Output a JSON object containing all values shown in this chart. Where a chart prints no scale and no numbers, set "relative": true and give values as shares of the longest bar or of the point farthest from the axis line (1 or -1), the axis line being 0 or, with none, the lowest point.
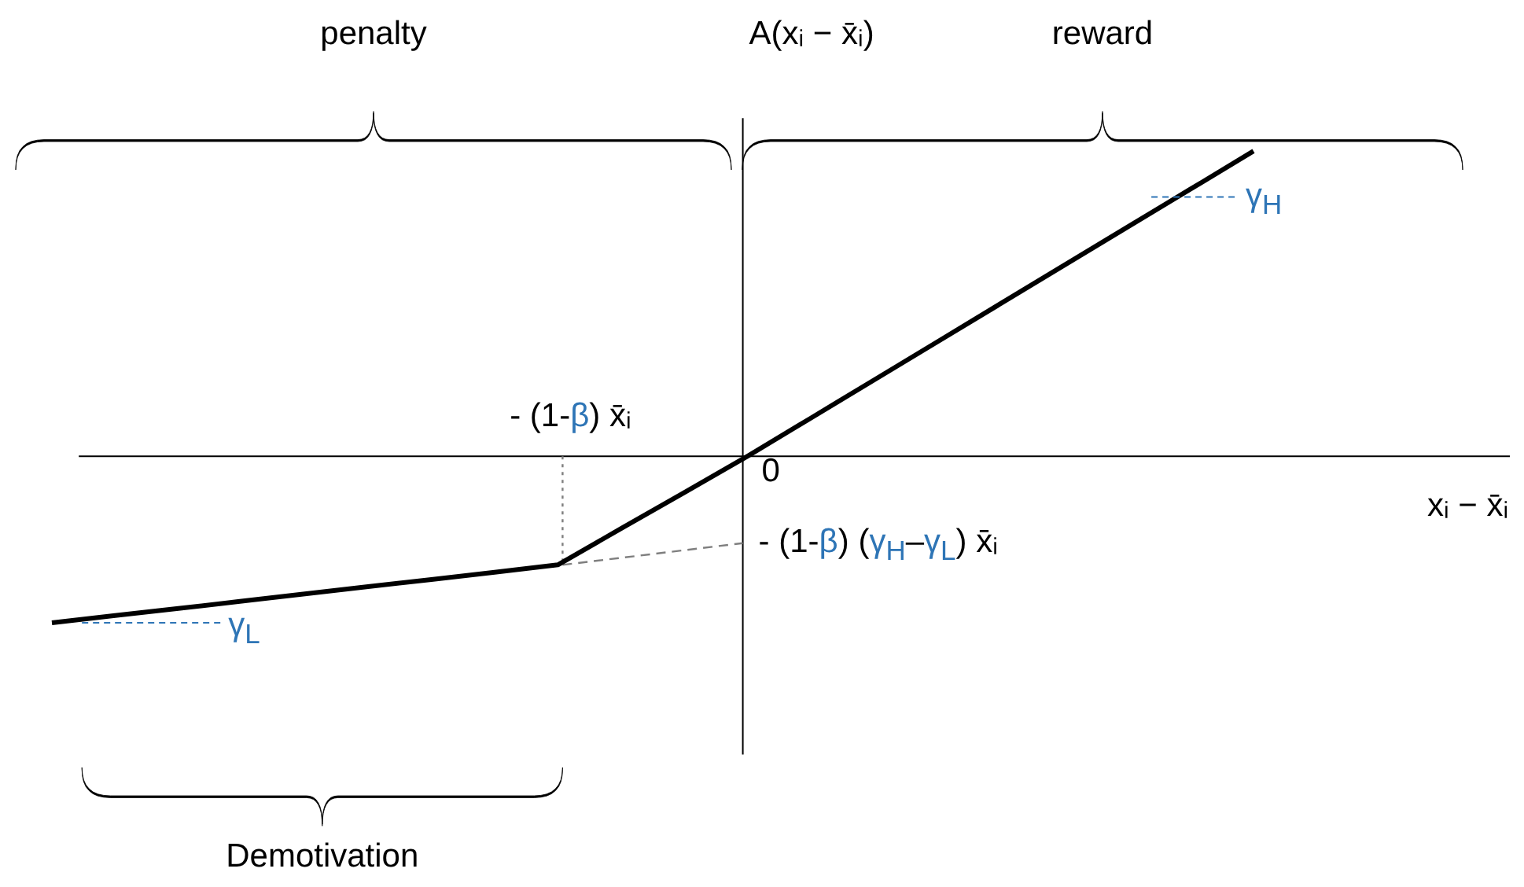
{
  "chart_data": {
    "type": "line",
    "relative": true,
    "tick_labels": false,
    "xlabel": "xᵢ − x̄ᵢ",
    "ylabel": "A(xᵢ − x̄ᵢ)",
    "categories": [
      null,
      null,
      null,
      null,
      null,
      null,
      null,
      null,
      null,
      null,
      null,
      null,
      null,
      null,
      null,
      null,
      null,
      null,
      null,
      null
    ],
    "series": [
      {
        "color": "#000000",
        "values": [
          -0.546,
          -0.522,
          -0.499,
          -0.475,
          -0.451,
          -0.427,
          -0.404,
          -0.38,
          -0.356,
          -0.237,
          -0.119,
          0,
          0.125,
          0.25,
          0.375,
          0.5,
          0.625,
          0.75,
          0.875,
          1
        ]
      }
    ],
    "annotations": [
      "penalty",
      "reward",
      "Demotivation",
      "0",
      "- (1-β) x̄ᵢ",
      "- (1-β) (γ$_{H}$–γ$_{L}$) x̄ᵢ",
      "γ$_{H}$",
      "γ$_{L}$"
    ]
  }
}
